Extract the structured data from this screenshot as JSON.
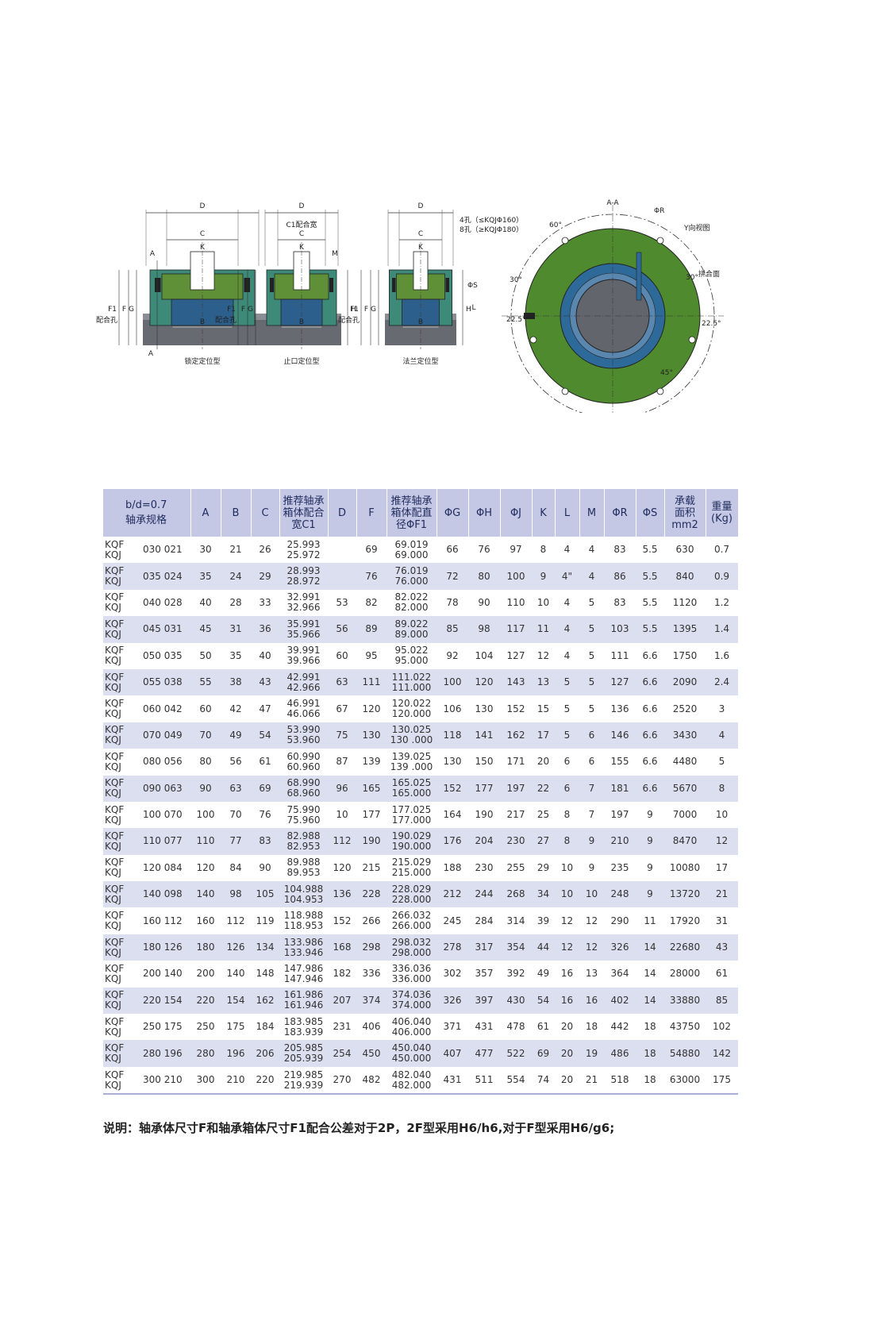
{
  "drawings": {
    "views": [
      {
        "caption": "锁定定位型"
      },
      {
        "caption": "止口定位型"
      },
      {
        "caption": "法兰定位型"
      }
    ],
    "labels": {
      "section": "A-A",
      "y_view": "Y向视图",
      "split_face": "拼合面",
      "c1_width": "C1配合宽",
      "fit_hole": "配合孔",
      "holes": [
        "4孔（≤KQJΦ160）",
        "8孔（≥KQJΦ180）"
      ],
      "phi_r": "ΦR",
      "phi_s": "ΦS",
      "angles": [
        "60°",
        "30°",
        "30°",
        "22.5°",
        "22.5°",
        "45°"
      ],
      "dims": [
        "D",
        "C",
        "K",
        "B",
        "F1",
        "F",
        "G",
        "H",
        "A",
        "L",
        "M"
      ]
    }
  },
  "table": {
    "header": [
      [
        "b/d=0.7",
        "轴承规格"
      ],
      [
        "A"
      ],
      [
        "B"
      ],
      [
        "C"
      ],
      [
        "推荐轴承",
        "箱体配合",
        "宽C1"
      ],
      [
        "D"
      ],
      [
        "F"
      ],
      [
        "推荐轴承",
        "箱体配直",
        "径ΦF1"
      ],
      [
        "ΦG"
      ],
      [
        "ΦH"
      ],
      [
        "ΦJ"
      ],
      [
        "K"
      ],
      [
        "L"
      ],
      [
        "M"
      ],
      [
        "ΦR"
      ],
      [
        "ΦS"
      ],
      [
        "承载",
        "面积",
        "mm2"
      ],
      [
        "重量",
        "(Kg)"
      ]
    ],
    "rows": [
      {
        "types": [
          "KQF",
          "KQJ"
        ],
        "size": "030 021",
        "cells": [
          "30",
          "21",
          "26",
          [
            "25.993",
            "25.972"
          ],
          null,
          "69",
          [
            "69.019",
            "69.000"
          ],
          "66",
          "76",
          "97",
          "8",
          "4",
          "4",
          "83",
          "5.5",
          "630",
          "0.7"
        ]
      },
      {
        "types": [
          "KQF",
          "KQJ"
        ],
        "size": "035 024",
        "cells": [
          "35",
          "24",
          "29",
          [
            "28.993",
            "28.972"
          ],
          null,
          "76",
          [
            "76.019",
            "76.000"
          ],
          "72",
          "80",
          "100",
          "9",
          "4\"",
          "4",
          "86",
          "5.5",
          "840",
          "0.9"
        ]
      },
      {
        "types": [
          "KQF",
          "KQJ"
        ],
        "size": "040 028",
        "cells": [
          "40",
          "28",
          "33",
          [
            "32.991",
            "32.966"
          ],
          "53",
          "82",
          [
            "82.022",
            "82.000"
          ],
          "78",
          "90",
          "110",
          "10",
          "4",
          "5",
          "83",
          "5.5",
          "1120",
          "1.2"
        ]
      },
      {
        "types": [
          "KQF",
          "KQJ"
        ],
        "size": "045 031",
        "cells": [
          "45",
          "31",
          "36",
          [
            "35.991",
            "35.966"
          ],
          "56",
          "89",
          [
            "89.022",
            "89.000"
          ],
          "85",
          "98",
          "117",
          "11",
          "4",
          "5",
          "103",
          "5.5",
          "1395",
          "1.4"
        ]
      },
      {
        "types": [
          "KQF",
          "KQJ"
        ],
        "size": "050 035",
        "cells": [
          "50",
          "35",
          "40",
          [
            "39.991",
            "39.966"
          ],
          "60",
          "95",
          [
            "95.022",
            "95.000"
          ],
          "92",
          "104",
          "127",
          "12",
          "4",
          "5",
          "111",
          "6.6",
          "1750",
          "1.6"
        ]
      },
      {
        "types": [
          "KQF",
          "KQJ"
        ],
        "size": "055 038",
        "cells": [
          "55",
          "38",
          "43",
          [
            "42.991",
            "42.966"
          ],
          "63",
          "111",
          [
            "111.022",
            "111.000"
          ],
          "100",
          "120",
          "143",
          "13",
          "5",
          "5",
          "127",
          "6.6",
          "2090",
          "2.4"
        ]
      },
      {
        "types": [
          "KQF",
          "KQJ"
        ],
        "size": "060 042",
        "cells": [
          "60",
          "42",
          "47",
          [
            "46.991",
            "46.066"
          ],
          "67",
          "120",
          [
            "120.022",
            "120.000"
          ],
          "106",
          "130",
          "152",
          "15",
          "5",
          "5",
          "136",
          "6.6",
          "2520",
          "3"
        ]
      },
      {
        "types": [
          "KQF",
          "KQJ"
        ],
        "size": "070 049",
        "cells": [
          "70",
          "49",
          "54",
          [
            "53.990",
            "53.960"
          ],
          "75",
          "130",
          [
            "130.025",
            "130 .000"
          ],
          "118",
          "141",
          "162",
          "17",
          "5",
          "6",
          "146",
          "6.6",
          "3430",
          "4"
        ]
      },
      {
        "types": [
          "KQF",
          "KQJ"
        ],
        "size": "080 056",
        "cells": [
          "80",
          "56",
          "61",
          [
            "60.990",
            "60.960"
          ],
          "87",
          "139",
          [
            "139.025",
            "139 .000"
          ],
          "130",
          "150",
          "171",
          "20",
          "6",
          "6",
          "155",
          "6.6",
          "4480",
          "5"
        ]
      },
      {
        "types": [
          "KQF",
          "KQJ"
        ],
        "size": "090 063",
        "cells": [
          "90",
          "63",
          "69",
          [
            "68.990",
            "68.960"
          ],
          "96",
          "165",
          [
            "165.025",
            "165.000"
          ],
          "152",
          "177",
          "197",
          "22",
          "6",
          "7",
          "181",
          "6.6",
          "5670",
          "8"
        ]
      },
      {
        "types": [
          "KQF",
          "KQJ"
        ],
        "size": "100 070",
        "cells": [
          "100",
          "70",
          "76",
          [
            "75.990",
            "75.960"
          ],
          "10",
          "177",
          [
            "177.025",
            "177.000"
          ],
          "164",
          "190",
          "217",
          "25",
          "8",
          "7",
          "197",
          "9",
          "7000",
          "10"
        ]
      },
      {
        "types": [
          "KQF",
          "KQJ"
        ],
        "size": "110 077",
        "cells": [
          "110",
          "77",
          "83",
          [
            "82.988",
            "82.953"
          ],
          "112",
          "190",
          [
            "190.029",
            "190.000"
          ],
          "176",
          "204",
          "230",
          "27",
          "8",
          "9",
          "210",
          "9",
          "8470",
          "12"
        ]
      },
      {
        "types": [
          "KQF",
          "KQJ"
        ],
        "size": "120 084",
        "cells": [
          "120",
          "84",
          "90",
          [
            "89.988",
            "89.953"
          ],
          "120",
          "215",
          [
            "215.029",
            "215.000"
          ],
          "188",
          "230",
          "255",
          "29",
          "10",
          "9",
          "235",
          "9",
          "10080",
          "17"
        ]
      },
      {
        "types": [
          "KQF",
          "KQJ"
        ],
        "size": "140 098",
        "cells": [
          "140",
          "98",
          "105",
          [
            "104.988",
            "104.953"
          ],
          "136",
          "228",
          [
            "228.029",
            "228.000"
          ],
          "212",
          "244",
          "268",
          "34",
          "10",
          "10",
          "248",
          "9",
          "13720",
          "21"
        ]
      },
      {
        "types": [
          "KQF",
          "KQJ"
        ],
        "size": "160 112",
        "cells": [
          "160",
          "112",
          "119",
          [
            "118.988",
            "118.953"
          ],
          "152",
          "266",
          [
            "266.032",
            "266.000"
          ],
          "245",
          "284",
          "314",
          "39",
          "12",
          "12",
          "290",
          "11",
          "17920",
          "31"
        ]
      },
      {
        "types": [
          "KQF",
          "KQJ"
        ],
        "size": "180 126",
        "cells": [
          "180",
          "126",
          "134",
          [
            "133.986",
            "133.946"
          ],
          "168",
          "298",
          [
            "298.032",
            "298.000"
          ],
          "278",
          "317",
          "354",
          "44",
          "12",
          "12",
          "326",
          "14",
          "22680",
          "43"
        ]
      },
      {
        "types": [
          "KQF",
          "KQJ"
        ],
        "size": "200 140",
        "cells": [
          "200",
          "140",
          "148",
          [
            "147.986",
            "147.946"
          ],
          "182",
          "336",
          [
            "336.036",
            "336.000"
          ],
          "302",
          "357",
          "392",
          "49",
          "16",
          "13",
          "364",
          "14",
          "28000",
          "61"
        ]
      },
      {
        "types": [
          "KQF",
          "KQJ"
        ],
        "size": "220 154",
        "cells": [
          "220",
          "154",
          "162",
          [
            "161.986",
            "161.946"
          ],
          "207",
          "374",
          [
            "374.036",
            "374.000"
          ],
          "326",
          "397",
          "430",
          "54",
          "16",
          "16",
          "402",
          "14",
          "33880",
          "85"
        ]
      },
      {
        "types": [
          "KQF",
          "KQJ"
        ],
        "size": "250 175",
        "cells": [
          "250",
          "175",
          "184",
          [
            "183.985",
            "183.939"
          ],
          "231",
          "406",
          [
            "406.040",
            "406.000"
          ],
          "371",
          "431",
          "478",
          "61",
          "20",
          "18",
          "442",
          "18",
          "43750",
          "102"
        ]
      },
      {
        "types": [
          "KQF",
          "KQJ"
        ],
        "size": "280 196",
        "cells": [
          "280",
          "196",
          "206",
          [
            "205.985",
            "205.939"
          ],
          "254",
          "450",
          [
            "450.040",
            "450.000"
          ],
          "407",
          "477",
          "522",
          "69",
          "20",
          "19",
          "486",
          "18",
          "54880",
          "142"
        ]
      },
      {
        "types": [
          "KQF",
          "KQJ"
        ],
        "size": "300 210",
        "cells": [
          "300",
          "210",
          "220",
          [
            "219.985",
            "219.939"
          ],
          "270",
          "482",
          [
            "482.040",
            "482.000"
          ],
          "431",
          "511",
          "554",
          "74",
          "20",
          "21",
          "518",
          "18",
          "63000",
          "175"
        ]
      }
    ]
  },
  "note": "说明：轴承体尺寸F和轴承箱体尺寸F1配合公差对于2P，2F型采用H6/h6,对于F型采用H6/g6;"
}
